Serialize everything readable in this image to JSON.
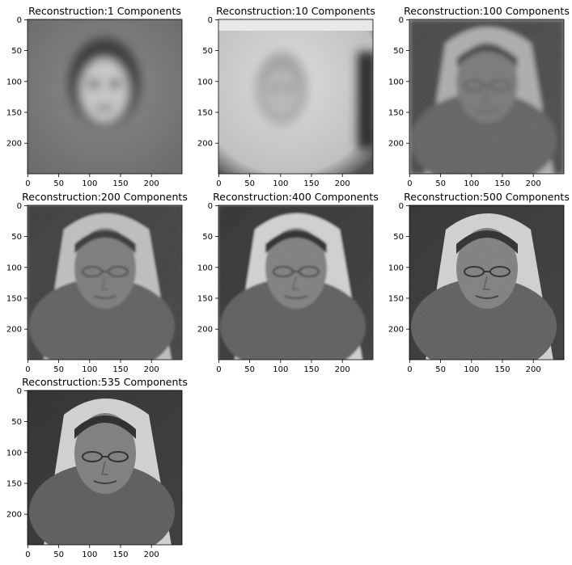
{
  "chart_data": [
    {
      "type": "image",
      "title": "Reconstruction:1 Components",
      "components": 1,
      "xticks": [
        0,
        50,
        100,
        150,
        200
      ],
      "yticks": [
        0,
        50,
        100,
        150,
        200
      ],
      "xlim": [
        -0.5,
        249.5
      ],
      "ylim": [
        249.5,
        -0.5
      ],
      "grid": false
    },
    {
      "type": "image",
      "title": "Reconstruction:10 Components",
      "components": 10,
      "xticks": [
        0,
        50,
        100,
        150,
        200
      ],
      "yticks": [
        0,
        50,
        100,
        150,
        200
      ],
      "xlim": [
        -0.5,
        249.5
      ],
      "ylim": [
        249.5,
        -0.5
      ],
      "grid": false
    },
    {
      "type": "image",
      "title": "Reconstruction:100 Components",
      "components": 100,
      "xticks": [
        0,
        50,
        100,
        150,
        200
      ],
      "yticks": [
        0,
        50,
        100,
        150,
        200
      ],
      "xlim": [
        -0.5,
        249.5
      ],
      "ylim": [
        249.5,
        -0.5
      ],
      "grid": false
    },
    {
      "type": "image",
      "title": "Reconstruction:200 Components",
      "components": 200,
      "xticks": [
        0,
        50,
        100,
        150,
        200
      ],
      "yticks": [
        0,
        50,
        100,
        150,
        200
      ],
      "xlim": [
        -0.5,
        249.5
      ],
      "ylim": [
        249.5,
        -0.5
      ],
      "grid": false
    },
    {
      "type": "image",
      "title": "Reconstruction:400 Components",
      "components": 400,
      "xticks": [
        0,
        50,
        100,
        150,
        200
      ],
      "yticks": [
        0,
        50,
        100,
        150,
        200
      ],
      "xlim": [
        -0.5,
        249.5
      ],
      "ylim": [
        249.5,
        -0.5
      ],
      "grid": false
    },
    {
      "type": "image",
      "title": "Reconstruction:500 Components",
      "components": 500,
      "xticks": [
        0,
        50,
        100,
        150,
        200
      ],
      "yticks": [
        0,
        50,
        100,
        150,
        200
      ],
      "xlim": [
        -0.5,
        249.5
      ],
      "ylim": [
        249.5,
        -0.5
      ],
      "grid": false
    },
    {
      "type": "image",
      "title": "Reconstruction:535 Components",
      "components": 535,
      "xticks": [
        0,
        50,
        100,
        150,
        200
      ],
      "yticks": [
        0,
        50,
        100,
        150,
        200
      ],
      "xlim": [
        -0.5,
        249.5
      ],
      "ylim": [
        249.5,
        -0.5
      ],
      "grid": false
    }
  ]
}
